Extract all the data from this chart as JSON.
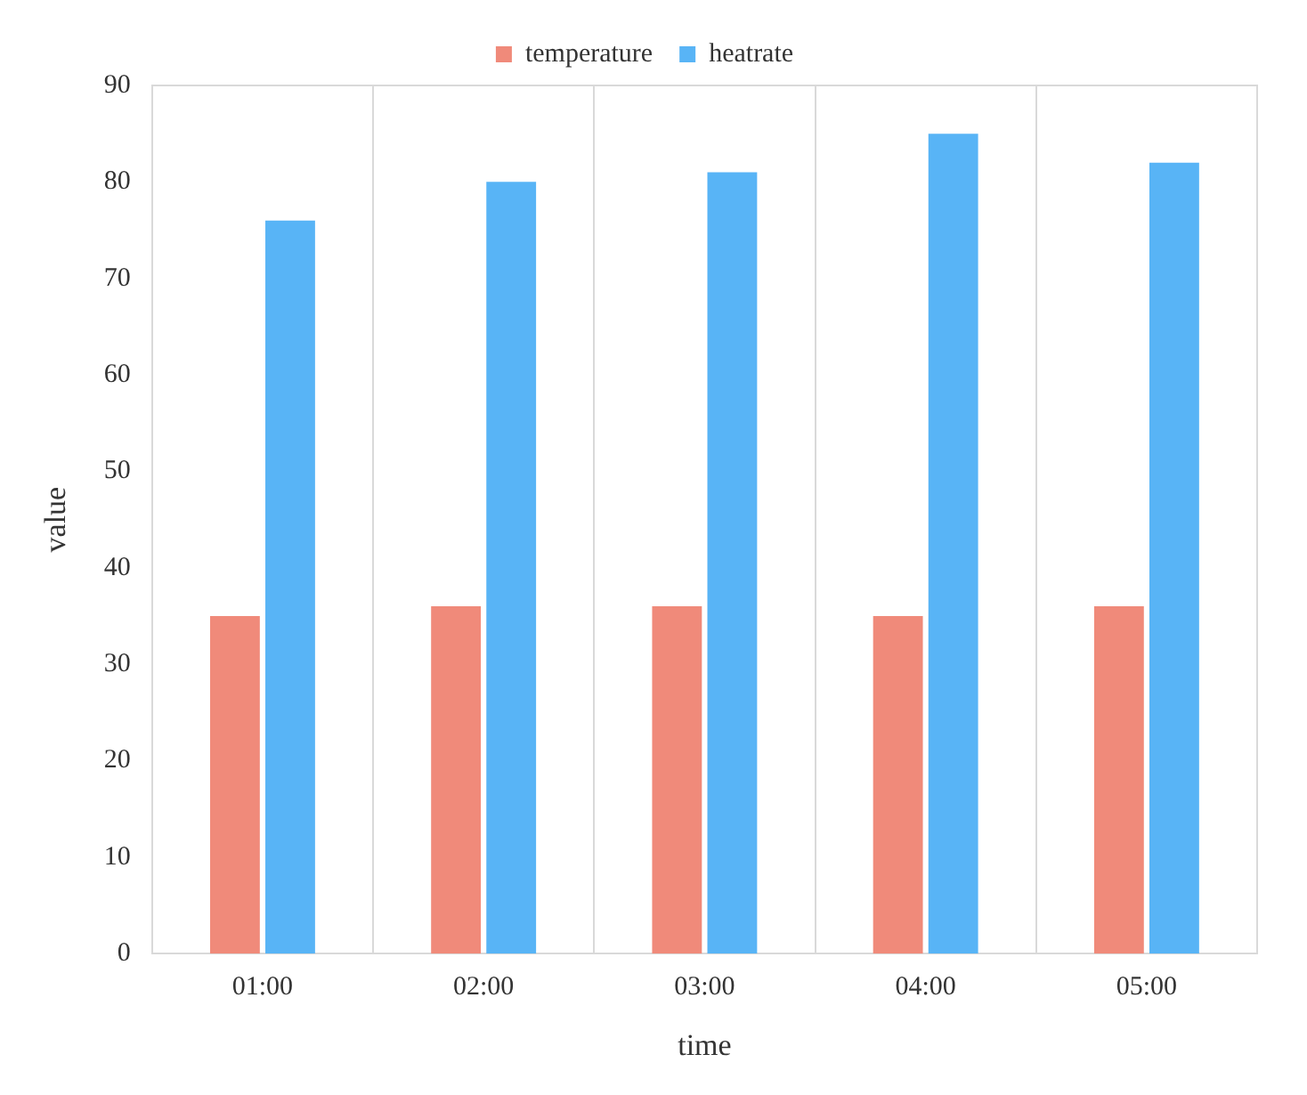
{
  "chart_data": {
    "type": "bar",
    "xlabel": "time",
    "ylabel": "value",
    "categories": [
      "01:00",
      "02:00",
      "03:00",
      "04:00",
      "05:00"
    ],
    "series": [
      {
        "name": "temperature",
        "color": "#f08a7a",
        "values": [
          35,
          36,
          36,
          35,
          36
        ]
      },
      {
        "name": "heatrate",
        "color": "#58b4f6",
        "values": [
          76,
          80,
          81,
          85,
          82
        ]
      }
    ],
    "ylim": [
      0,
      90
    ],
    "yticks": [
      0,
      10,
      20,
      30,
      40,
      50,
      60,
      70,
      80,
      90
    ],
    "grid": "x",
    "legend": "top"
  }
}
